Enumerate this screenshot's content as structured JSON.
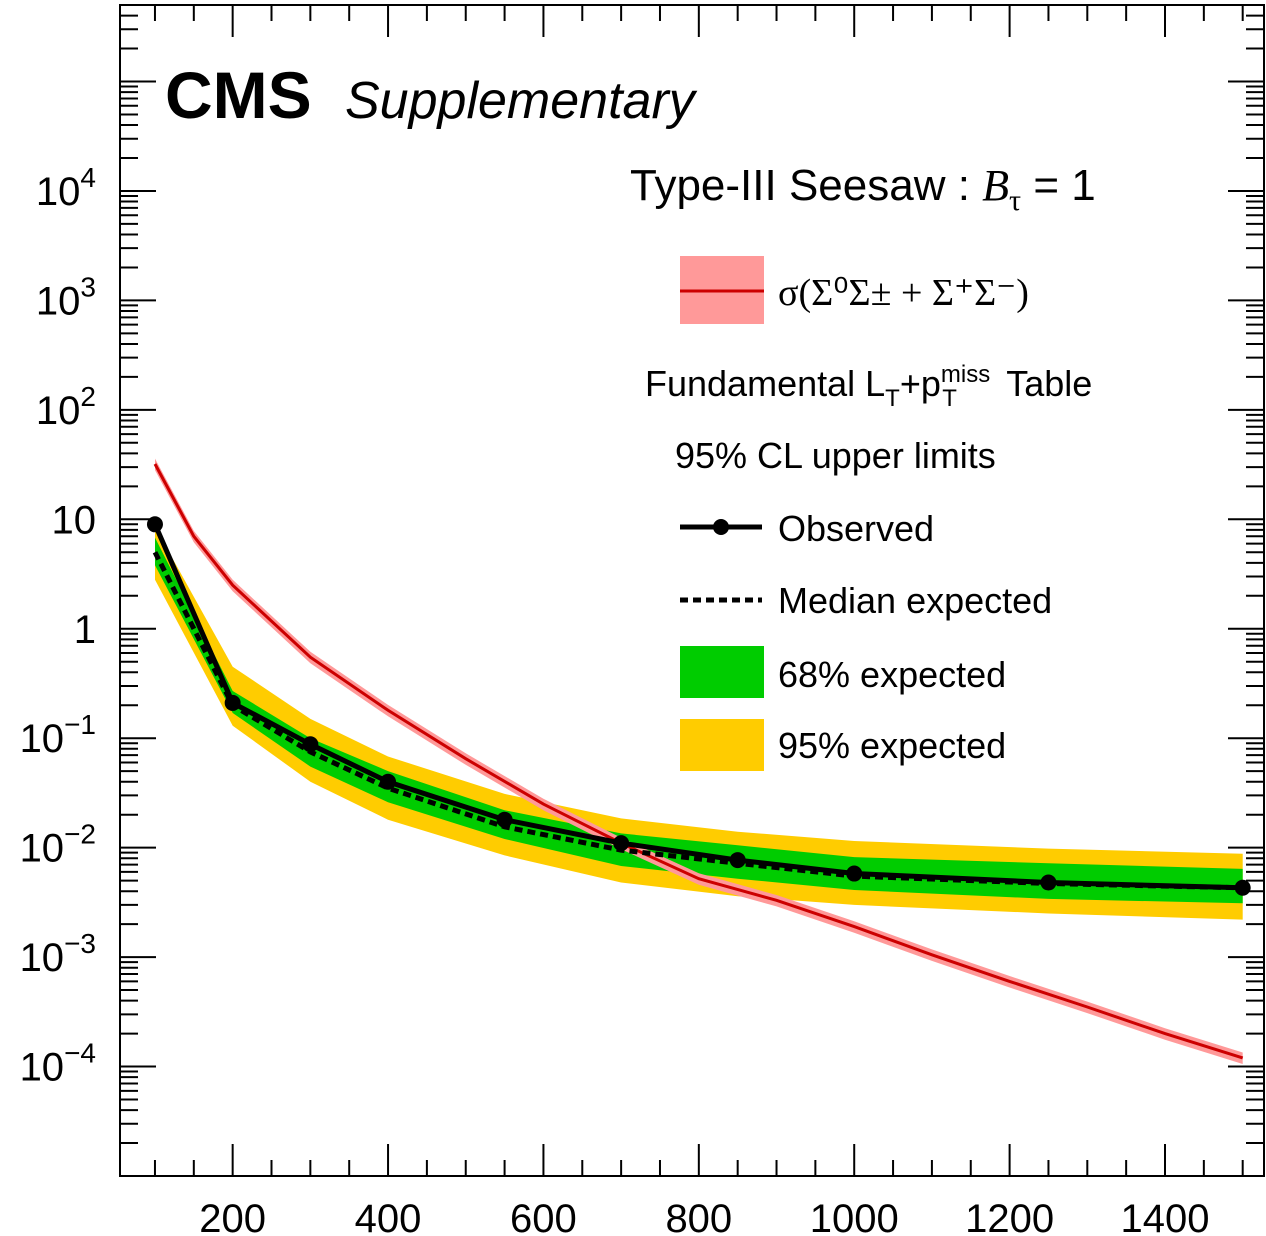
{
  "header": {
    "experiment": "CMS",
    "status": "Supplementary",
    "model_prefix": "Type-III Seesaw : ",
    "model_symbol": "B",
    "model_subscript": "τ",
    "model_suffix": " = 1"
  },
  "legend": {
    "theory_label": "σ(Σ⁰Σ± + Σ⁺Σ⁻)",
    "analysis_prefix": "Fundamental L",
    "analysis_sub_T": "T",
    "analysis_plus": "+p",
    "analysis_sup_miss": "miss",
    "analysis_sub_T2": "T",
    "analysis_suffix": " Table",
    "cl_label": "95% CL upper limits",
    "observed_label": "Observed",
    "median_label": "Median expected",
    "band68_label": "68% expected",
    "band95_label": "95% expected"
  },
  "colors": {
    "theory_line": "#cc0000",
    "theory_band": "#ff9999",
    "band68": "#00cc00",
    "band95": "#ffcc00",
    "observed": "#000000"
  },
  "chart_data": {
    "type": "line",
    "xlim": [
      55,
      1530
    ],
    "ylim": [
      1e-05,
      500000
    ],
    "y_scale": "log",
    "x_ticks": [
      200,
      400,
      600,
      800,
      1000,
      1200,
      1400
    ],
    "x_tick_labels": [
      "200",
      "400",
      "600",
      "800",
      "1000",
      "1200",
      "1400"
    ],
    "y_ticks": [
      0.0001,
      0.001,
      0.01,
      0.1,
      1,
      10,
      100,
      1000,
      10000
    ],
    "y_tick_base": [
      "10",
      "10",
      "10",
      "10",
      "1",
      "10",
      "10",
      "10",
      "10"
    ],
    "y_tick_exp": [
      "−4",
      "−3",
      "−2",
      "−1",
      "",
      "",
      "2",
      "3",
      "4"
    ],
    "legend_position": "top-right",
    "grid": false,
    "masses": [
      100,
      200,
      300,
      400,
      550,
      700,
      850,
      1000,
      1250,
      1500
    ],
    "observed": [
      9.0,
      0.21,
      0.088,
      0.04,
      0.018,
      0.011,
      0.0077,
      0.0058,
      0.0048,
      0.0043
    ],
    "median": [
      5.0,
      0.2,
      0.075,
      0.035,
      0.0155,
      0.0095,
      0.0072,
      0.0055,
      0.0047,
      0.0043
    ],
    "band68_low": [
      3.8,
      0.17,
      0.055,
      0.026,
      0.012,
      0.0068,
      0.0052,
      0.0041,
      0.0034,
      0.0031
    ],
    "band68_high": [
      6.8,
      0.27,
      0.1,
      0.05,
      0.022,
      0.0135,
      0.0105,
      0.0082,
      0.0072,
      0.0064
    ],
    "band95_low": [
      2.8,
      0.13,
      0.04,
      0.018,
      0.0085,
      0.0048,
      0.0036,
      0.003,
      0.0025,
      0.0022
    ],
    "band95_high": [
      8.5,
      0.45,
      0.15,
      0.068,
      0.031,
      0.0185,
      0.014,
      0.0115,
      0.0098,
      0.0088
    ],
    "theory": {
      "x": [
        100,
        150,
        200,
        300,
        400,
        500,
        600,
        700,
        800,
        900,
        1000,
        1100,
        1200,
        1300,
        1400,
        1500
      ],
      "y": [
        32,
        7.0,
        2.5,
        0.55,
        0.18,
        0.065,
        0.025,
        0.011,
        0.0052,
        0.0033,
        0.0019,
        0.00105,
        0.0006,
        0.00035,
        0.0002,
        0.00012
      ],
      "rel_band": 0.12
    }
  }
}
